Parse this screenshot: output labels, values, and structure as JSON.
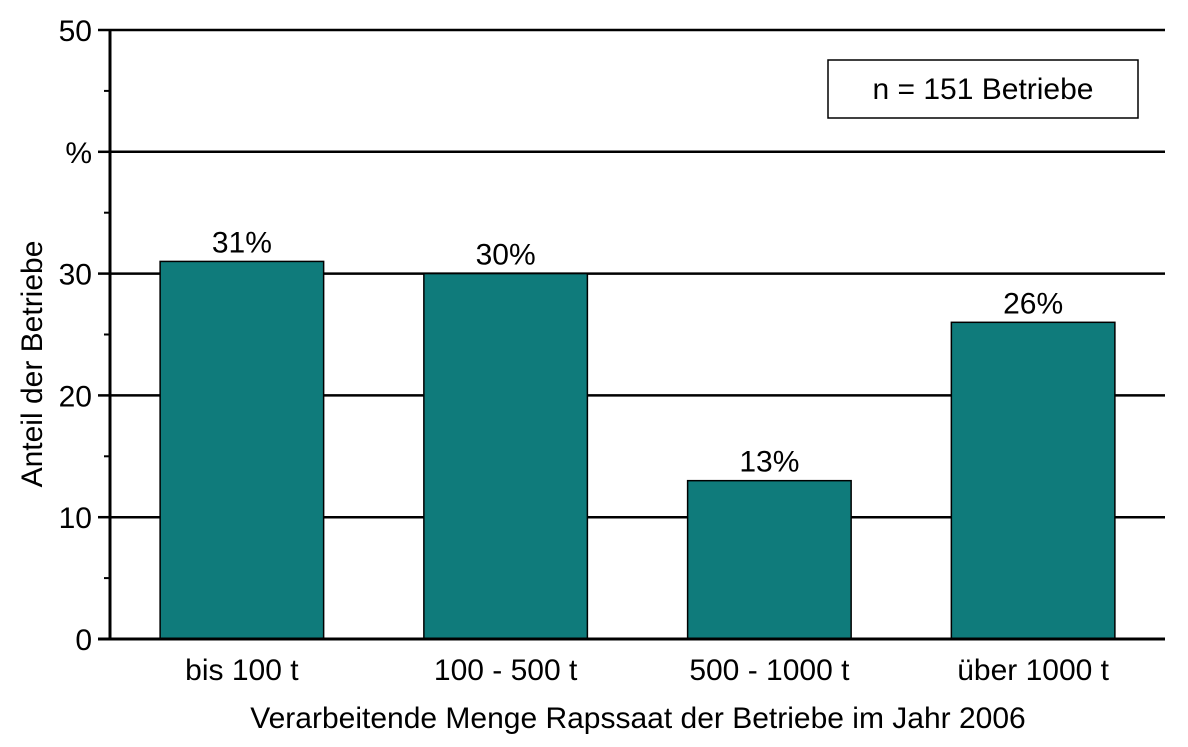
{
  "chart_data": {
    "type": "bar",
    "categories": [
      "bis 100 t",
      "100 - 500 t",
      "500 - 1000 t",
      "über 1000 t"
    ],
    "values": [
      31,
      30,
      13,
      26
    ],
    "data_labels": [
      "31%",
      "30%",
      "13%",
      "26%"
    ],
    "xlabel": "Verarbeitende Menge Rapssaat der Betriebe im Jahr 2006",
    "ylabel": "Anteil der Betriebe",
    "ylim": [
      0,
      50
    ],
    "yticks": [
      "0",
      "10",
      "20",
      "30",
      "%",
      "50"
    ],
    "annotation": "n = 151 Betriebe",
    "grid": true,
    "bar_color": "#0f7b7b",
    "legend": "none"
  }
}
